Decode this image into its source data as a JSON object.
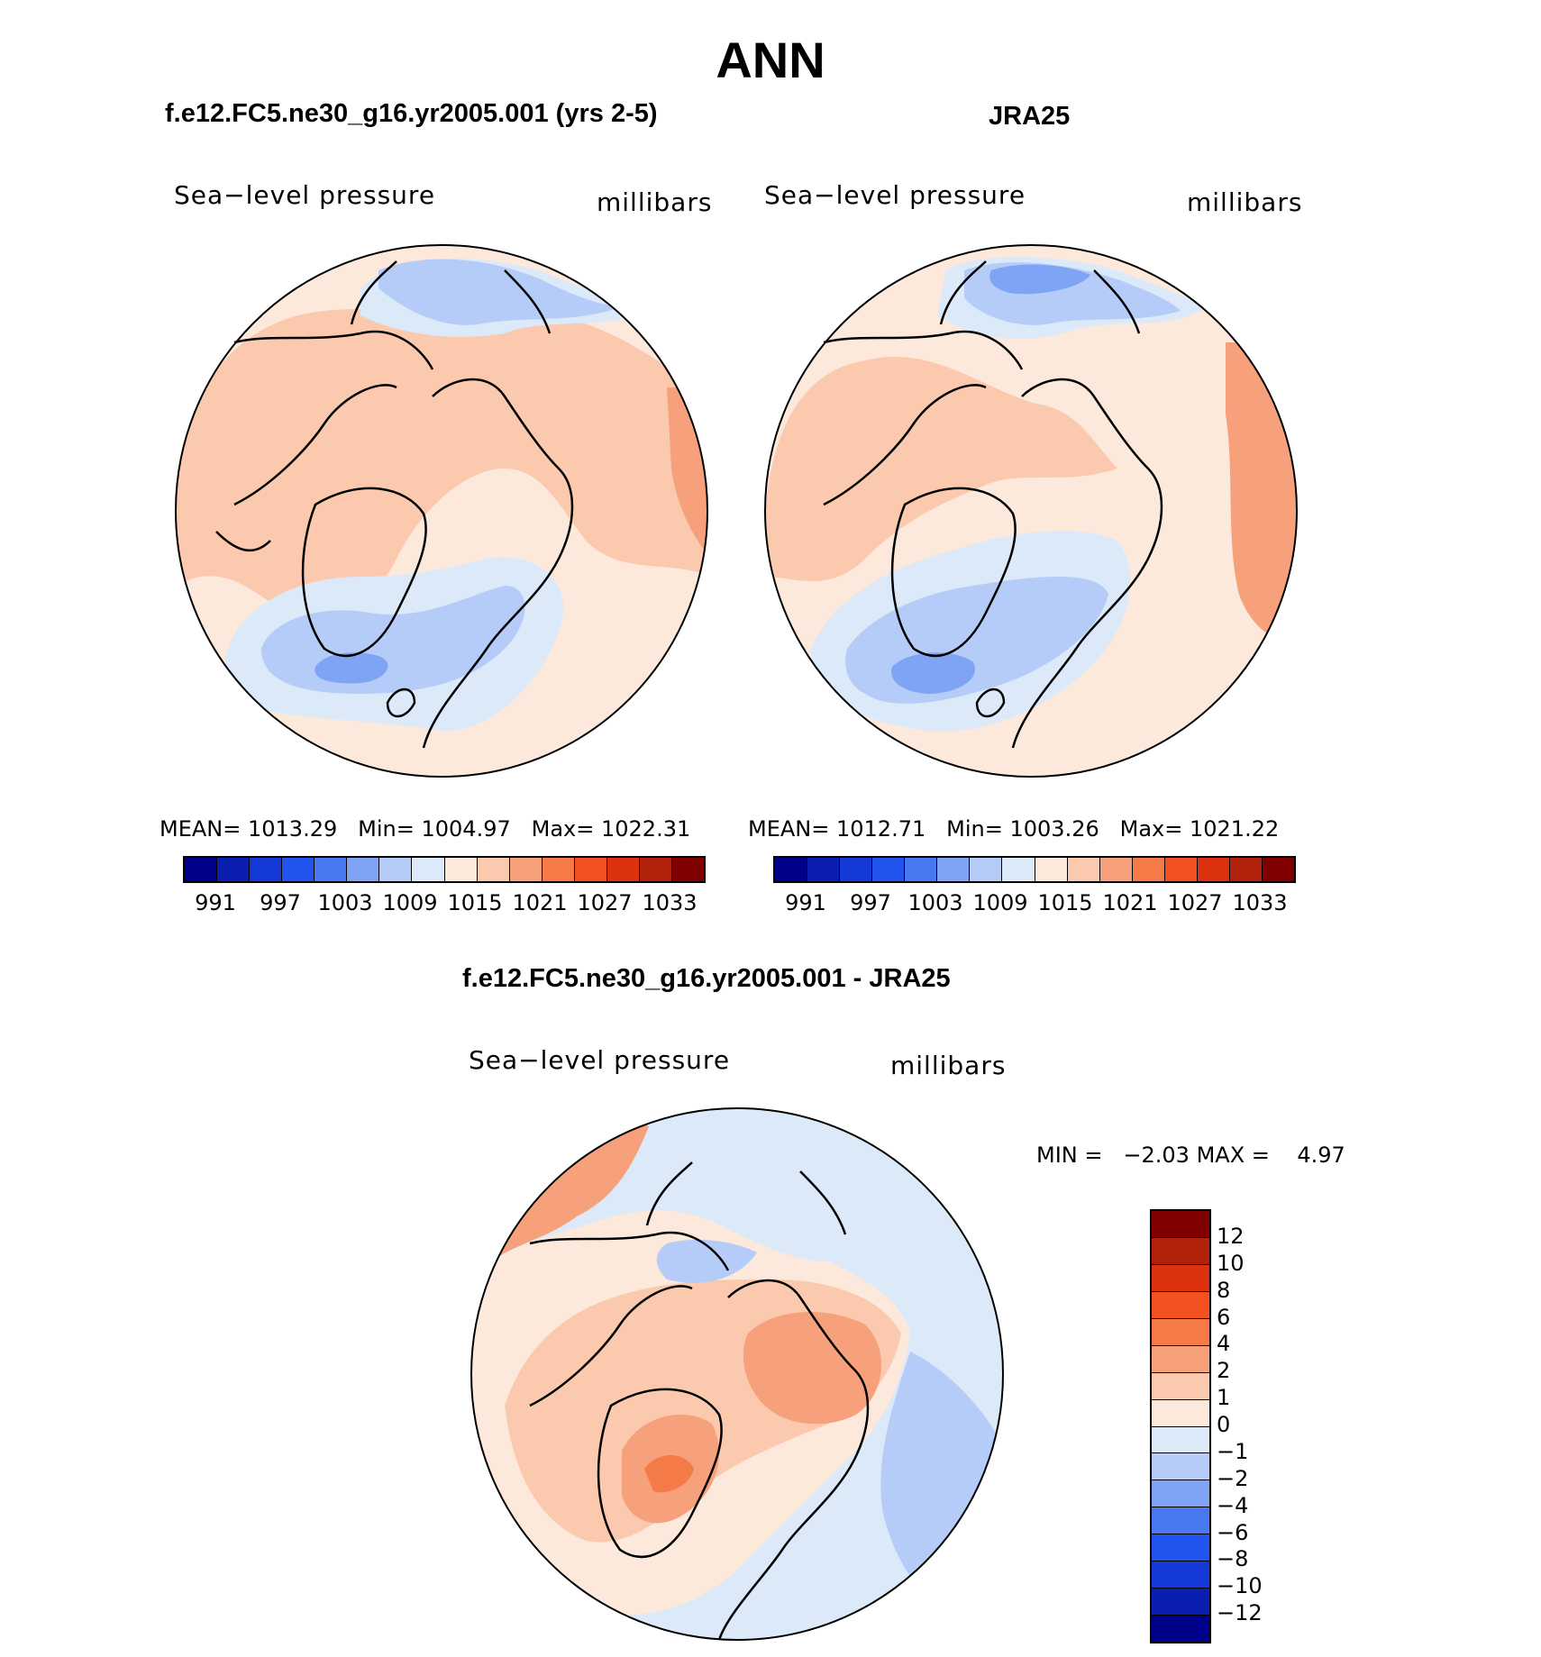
{
  "figure": {
    "season": "ANN"
  },
  "panels": {
    "model": {
      "title": "f.e12.FC5.ne30_g16.yr2005.001 (yrs 2-5)",
      "variable": "Sea−level pressure",
      "units": "millibars",
      "mean_label": "MEAN=",
      "mean": "1013.29",
      "min_label": "Min=",
      "min": "1004.97",
      "max_label": "Max=",
      "max": "1022.31"
    },
    "obs": {
      "title": "JRA25",
      "variable": "Sea−level pressure",
      "units": "millibars",
      "mean_label": "MEAN=",
      "mean": "1012.71",
      "min_label": "Min=",
      "min": "1003.26",
      "max_label": "Max=",
      "max": "1021.22"
    },
    "diff": {
      "title": "f.e12.FC5.ne30_g16.yr2005.001 - JRA25",
      "variable": "Sea−level pressure",
      "units": "millibars",
      "min_label": "MIN =",
      "min": "−2.03",
      "max_label": "MAX =",
      "max": "4.97"
    }
  },
  "colorbars": {
    "absolute": {
      "colors": [
        "#00008b",
        "#0a1fb0",
        "#1439d6",
        "#2255f0",
        "#4a78f0",
        "#7fa3f5",
        "#b4ccf7",
        "#dce9f9",
        "#fde9db",
        "#fbc9ad",
        "#f7a07c",
        "#f47a48",
        "#f2521f",
        "#dc3210",
        "#b2220a",
        "#800000"
      ],
      "tick_labels": [
        "991",
        "997",
        "1003",
        "1009",
        "1015",
        "1021",
        "1027",
        "1033"
      ]
    },
    "difference": {
      "colors_top_to_bottom": [
        "#800000",
        "#b2220a",
        "#dc3210",
        "#f2521f",
        "#f47a48",
        "#f7a07c",
        "#fbc9ad",
        "#fde9db",
        "#dce9f9",
        "#b4ccf7",
        "#7fa3f5",
        "#4a78f0",
        "#2255f0",
        "#1439d6",
        "#0a1fb0",
        "#00008b"
      ],
      "tick_labels_top_to_bottom": [
        "12",
        "10",
        "8",
        "6",
        "4",
        "2",
        "1",
        "0",
        "−1",
        "−2",
        "−4",
        "−6",
        "−8",
        "−10",
        "−12"
      ]
    }
  }
}
